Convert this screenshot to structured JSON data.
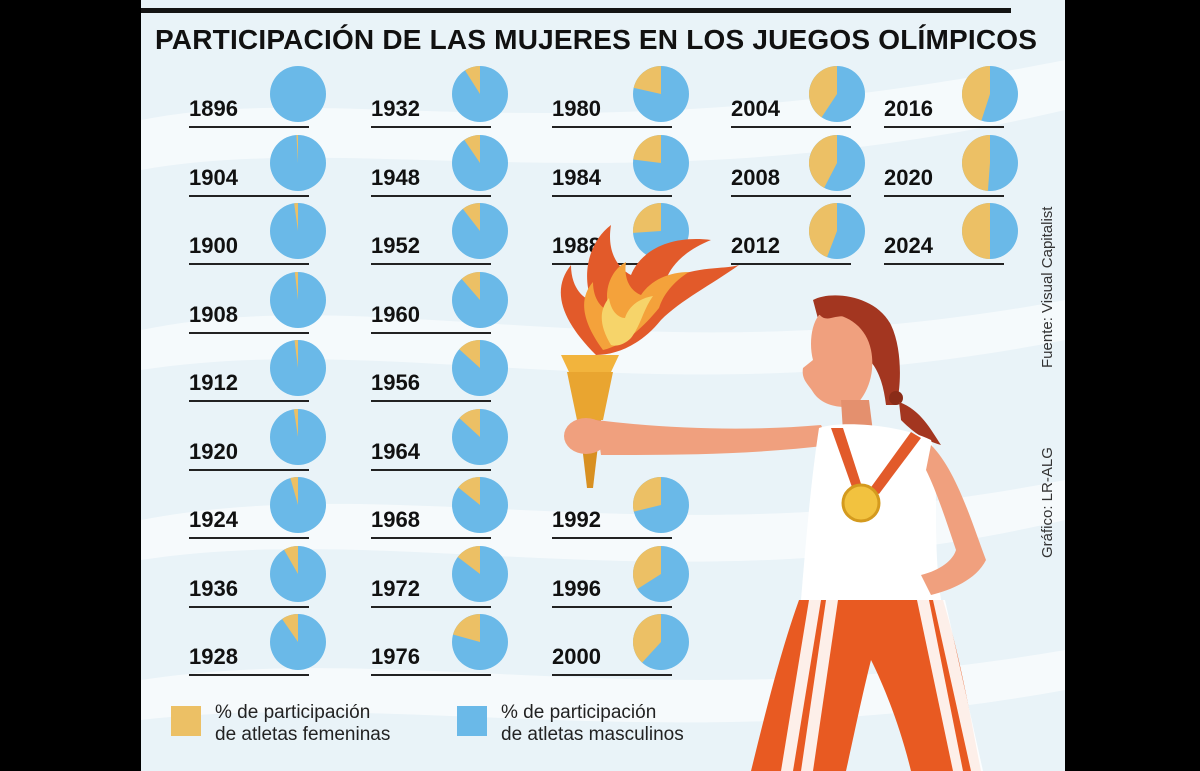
{
  "title": "PARTICIPACIÓN DE LAS MUJERES EN LOS JUEGOS OLÍMPICOS",
  "source": "Fuente: Visual Capitalist",
  "credit": "Gráfico: LR-ALG",
  "colors": {
    "women": "#ecc065",
    "men": "#6ab9e8",
    "background": "#e9f3f8"
  },
  "legend": {
    "women": [
      "% de participación",
      "de atletas femeninas"
    ],
    "men": [
      "% de participación",
      "de atletas masculinos"
    ]
  },
  "chart_data": {
    "type": "pie",
    "series_labels": [
      "% de participación de atletas femeninas",
      "% de participación de atletas masculinos"
    ],
    "pies": [
      {
        "year": "1896",
        "women_pct": 0
      },
      {
        "year": "1904",
        "women_pct": 0.9
      },
      {
        "year": "1900",
        "women_pct": 2.2
      },
      {
        "year": "1908",
        "women_pct": 1.8
      },
      {
        "year": "1912",
        "women_pct": 2.0
      },
      {
        "year": "1920",
        "women_pct": 2.4
      },
      {
        "year": "1924",
        "women_pct": 4.4
      },
      {
        "year": "1936",
        "women_pct": 8.3
      },
      {
        "year": "1928",
        "women_pct": 9.6
      },
      {
        "year": "1932",
        "women_pct": 9.0
      },
      {
        "year": "1948",
        "women_pct": 9.5
      },
      {
        "year": "1952",
        "women_pct": 10.5
      },
      {
        "year": "1960",
        "women_pct": 11.4
      },
      {
        "year": "1956",
        "women_pct": 13.3
      },
      {
        "year": "1964",
        "women_pct": 13.2
      },
      {
        "year": "1968",
        "women_pct": 14.2
      },
      {
        "year": "1972",
        "women_pct": 14.6
      },
      {
        "year": "1976",
        "women_pct": 20.7
      },
      {
        "year": "1980",
        "women_pct": 21.5
      },
      {
        "year": "1984",
        "women_pct": 23.0
      },
      {
        "year": "1988",
        "women_pct": 26.1
      },
      {
        "year": "1992",
        "women_pct": 28.8
      },
      {
        "year": "1996",
        "women_pct": 34.0
      },
      {
        "year": "2000",
        "women_pct": 38.2
      },
      {
        "year": "2004",
        "women_pct": 40.7
      },
      {
        "year": "2008",
        "women_pct": 42.4
      },
      {
        "year": "2012",
        "women_pct": 44.2
      },
      {
        "year": "2016",
        "women_pct": 45.0
      },
      {
        "year": "2020",
        "women_pct": 48.8
      },
      {
        "year": "2024",
        "women_pct": 50.0
      }
    ]
  }
}
